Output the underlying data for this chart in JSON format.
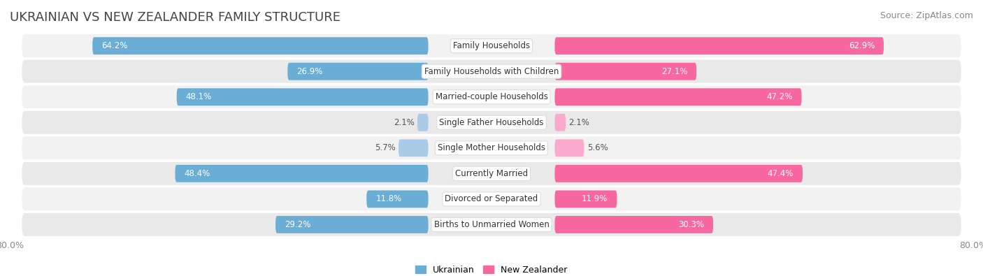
{
  "title": "UKRAINIAN VS NEW ZEALANDER FAMILY STRUCTURE",
  "source": "Source: ZipAtlas.com",
  "categories": [
    "Family Households",
    "Family Households with Children",
    "Married-couple Households",
    "Single Father Households",
    "Single Mother Households",
    "Currently Married",
    "Divorced or Separated",
    "Births to Unmarried Women"
  ],
  "ukrainian_values": [
    64.2,
    26.9,
    48.1,
    2.1,
    5.7,
    48.4,
    11.8,
    29.2
  ],
  "nz_values": [
    62.9,
    27.1,
    47.2,
    2.1,
    5.6,
    47.4,
    11.9,
    30.3
  ],
  "ukrainian_color": "#6aadd5",
  "nz_color": "#f768a1",
  "ukrainian_color_light": "#aacce8",
  "nz_color_light": "#f9aace",
  "axis_max": 80.0,
  "legend_labels": [
    "Ukrainian",
    "New Zealander"
  ],
  "background_color": "#ffffff",
  "row_bg_color": "#f0f0f0",
  "row_alt_bg_color": "#e8e8e8",
  "title_fontsize": 13,
  "source_fontsize": 9,
  "bar_label_fontsize": 8.5,
  "category_fontsize": 8.5,
  "label_threshold": 10
}
